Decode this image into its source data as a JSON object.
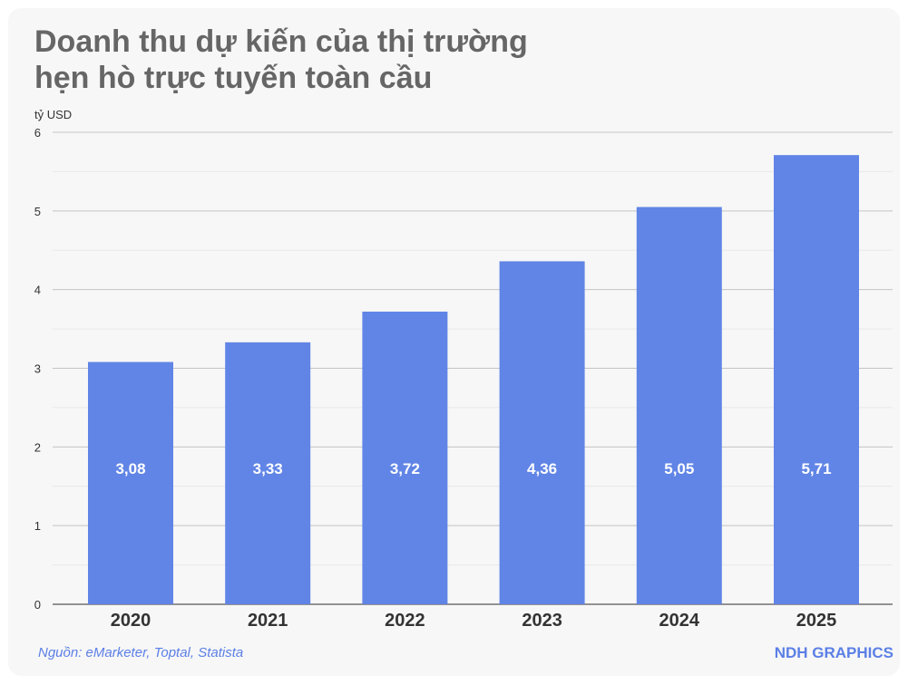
{
  "page": {
    "source": "Nguồn: eMarketer, Toptal, Statista",
    "brand": "NDH GRAPHICS"
  },
  "chart_data": {
    "type": "bar",
    "title_lines": [
      "Doanh thu dự kiến của thị trường",
      "hẹn hò trực tuyến toàn cầu"
    ],
    "ylabel": "tỷ USD",
    "xlabel": "",
    "categories": [
      "2020",
      "2021",
      "2022",
      "2023",
      "2024",
      "2025"
    ],
    "values": [
      3.08,
      3.33,
      3.72,
      4.36,
      5.05,
      5.71
    ],
    "data_labels": [
      "3,08",
      "3,33",
      "3,72",
      "4,36",
      "5,05",
      "5,71"
    ],
    "ylim": [
      0,
      6
    ],
    "yticks": [
      0,
      1,
      2,
      3,
      4,
      5,
      6
    ],
    "grid": true,
    "bar_color": "#6185e6"
  }
}
